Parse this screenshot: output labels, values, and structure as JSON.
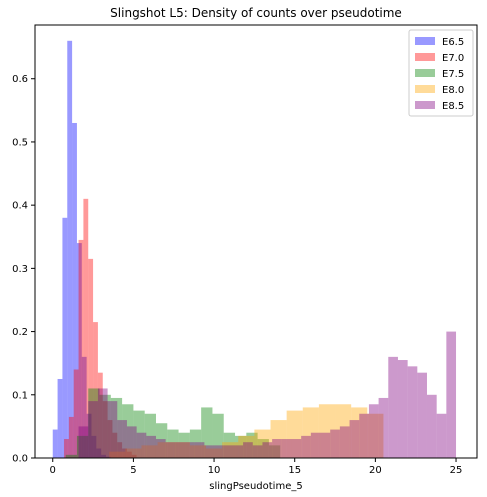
{
  "chart_data": {
    "type": "bar",
    "title": "Slingshot L5: Density of counts over pseudotime",
    "xlabel": "slingPseudotime_5",
    "ylabel": "",
    "xlim": [
      -1.1,
      26.3
    ],
    "ylim": [
      0,
      0.685
    ],
    "xticks": [
      0,
      5,
      10,
      15,
      20,
      25
    ],
    "yticks": [
      0.0,
      0.1,
      0.2,
      0.3,
      0.4,
      0.5,
      0.6
    ],
    "legend_position": "top-right",
    "series": [
      {
        "name": "E6.5",
        "color": "#0000ff",
        "bin_edges": [
          0.0,
          0.3,
          0.6,
          0.9,
          1.2,
          1.5,
          1.8,
          2.1,
          2.4,
          2.7,
          3.0,
          3.3,
          3.6
        ],
        "values": [
          0.045,
          0.125,
          0.38,
          0.66,
          0.53,
          0.34,
          0.16,
          0.07,
          0.035,
          0.015,
          0.005,
          0.002
        ]
      },
      {
        "name": "E7.0",
        "color": "#ff0000",
        "bin_edges": [
          0.7,
          1.0,
          1.3,
          1.6,
          1.9,
          2.2,
          2.5,
          2.8,
          3.1,
          3.4,
          3.7,
          4.0,
          4.3,
          4.6,
          4.9,
          5.2
        ],
        "values": [
          0.03,
          0.065,
          0.14,
          0.345,
          0.41,
          0.315,
          0.215,
          0.135,
          0.09,
          0.06,
          0.04,
          0.025,
          0.015,
          0.01,
          0.005
        ]
      },
      {
        "name": "E7.5",
        "color": "#008000",
        "bin_edges": [
          0.8,
          1.5,
          2.2,
          2.9,
          3.6,
          4.3,
          5.0,
          5.7,
          6.4,
          7.1,
          7.8,
          8.5,
          9.2,
          9.9,
          10.6,
          11.3,
          12.0,
          12.7,
          13.4,
          14.1
        ],
        "values": [
          0.005,
          0.035,
          0.11,
          0.1,
          0.095,
          0.085,
          0.075,
          0.07,
          0.055,
          0.045,
          0.04,
          0.045,
          0.08,
          0.07,
          0.04,
          0.035,
          0.04,
          0.03,
          0.02
        ]
      },
      {
        "name": "E8.0",
        "color": "#ffa500",
        "bin_edges": [
          3.5,
          4.5,
          5.5,
          6.5,
          7.5,
          8.5,
          9.5,
          10.5,
          11.5,
          12.5,
          13.5,
          14.5,
          15.5,
          16.5,
          17.5,
          18.5,
          19.5,
          20.5
        ],
        "values": [
          0.01,
          0.015,
          0.02,
          0.025,
          0.025,
          0.02,
          0.015,
          0.025,
          0.035,
          0.045,
          0.06,
          0.075,
          0.08,
          0.085,
          0.085,
          0.08,
          0.07
        ]
      },
      {
        "name": "E8.5",
        "color": "#800080",
        "bin_edges": [
          1.6,
          2.2,
          2.8,
          3.4,
          4.0,
          4.6,
          5.2,
          5.8,
          6.4,
          7.0,
          7.6,
          8.2,
          8.8,
          9.4,
          10.0,
          10.6,
          11.2,
          11.8,
          12.4,
          13.0,
          13.6,
          14.2,
          14.8,
          15.4,
          16.0,
          16.6,
          17.2,
          17.8,
          18.4,
          19.0,
          19.6,
          20.2,
          20.8,
          21.4,
          22.0,
          22.6,
          23.2,
          23.8,
          24.4,
          25.0
        ],
        "values": [
          0.05,
          0.09,
          0.11,
          0.09,
          0.06,
          0.05,
          0.04,
          0.035,
          0.03,
          0.025,
          0.025,
          0.025,
          0.025,
          0.02,
          0.02,
          0.02,
          0.02,
          0.025,
          0.02,
          0.025,
          0.03,
          0.03,
          0.03,
          0.035,
          0.04,
          0.04,
          0.045,
          0.05,
          0.06,
          0.07,
          0.085,
          0.095,
          0.16,
          0.155,
          0.145,
          0.135,
          0.1,
          0.07,
          0.2
        ]
      }
    ]
  }
}
